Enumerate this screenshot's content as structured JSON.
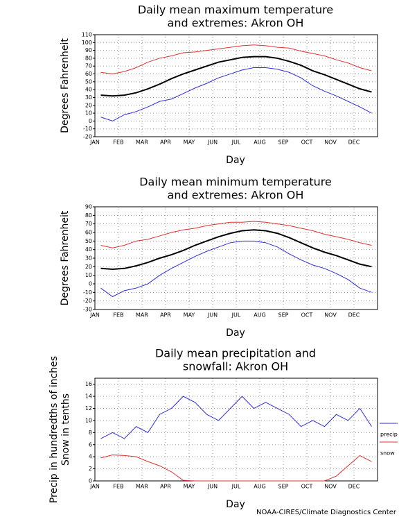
{
  "chart_data": [
    {
      "type": "line",
      "title": [
        "Daily mean maximum temperature",
        "and extremes: Akron OH"
      ],
      "ylabel": [
        "Degrees Fahrenheit"
      ],
      "xlabel": "Day",
      "categories": [
        "JAN",
        null,
        "FEB",
        null,
        "MAR",
        null,
        "APR",
        null,
        "MAY",
        null,
        "JUN",
        null,
        "JUL",
        null,
        "AUG",
        null,
        "SEP",
        null,
        "OCT",
        null,
        "NOV",
        null,
        "DEC",
        null
      ],
      "ylim": [
        -20,
        110
      ],
      "yticks": [
        -20,
        -10,
        0,
        10,
        20,
        30,
        40,
        50,
        60,
        70,
        80,
        90,
        100,
        110
      ],
      "grid": true,
      "series": [
        {
          "color": "#e03030",
          "values": [
            62,
            60,
            63,
            68,
            75,
            80,
            83,
            87,
            88,
            90,
            92,
            94,
            96,
            97,
            96,
            94,
            93,
            89,
            86,
            83,
            78,
            74,
            68,
            64
          ]
        },
        {
          "color": "#000000",
          "values": [
            33,
            32,
            33,
            36,
            41,
            47,
            54,
            60,
            65,
            70,
            75,
            78,
            81,
            82,
            82,
            80,
            76,
            71,
            64,
            59,
            53,
            47,
            41,
            37
          ]
        },
        {
          "color": "#2a2adc",
          "values": [
            5,
            0,
            8,
            12,
            18,
            25,
            28,
            35,
            42,
            48,
            55,
            60,
            65,
            68,
            68,
            66,
            62,
            55,
            45,
            38,
            32,
            25,
            18,
            10
          ]
        }
      ]
    },
    {
      "type": "line",
      "title": [
        "Daily mean minimum temperature",
        "and extremes: Akron OH"
      ],
      "ylabel": [
        "Degrees Fahrenheit"
      ],
      "xlabel": "Day",
      "categories": [
        "JAN",
        null,
        "FEB",
        null,
        "MAR",
        null,
        "APR",
        null,
        "MAY",
        null,
        "JUN",
        null,
        "JUL",
        null,
        "AUG",
        null,
        "SEP",
        null,
        "OCT",
        null,
        "NOV",
        null,
        "DEC",
        null
      ],
      "ylim": [
        -30,
        90
      ],
      "yticks": [
        -30,
        -20,
        -10,
        0,
        10,
        20,
        30,
        40,
        50,
        60,
        70,
        80,
        90
      ],
      "grid": true,
      "series": [
        {
          "color": "#e03030",
          "values": [
            45,
            42,
            45,
            50,
            52,
            56,
            60,
            63,
            65,
            68,
            70,
            72,
            72,
            73,
            72,
            70,
            68,
            65,
            62,
            58,
            55,
            52,
            48,
            45
          ]
        },
        {
          "color": "#000000",
          "values": [
            18,
            17,
            18,
            21,
            25,
            30,
            34,
            39,
            45,
            50,
            55,
            59,
            62,
            63,
            62,
            59,
            54,
            48,
            42,
            37,
            33,
            28,
            23,
            20
          ]
        },
        {
          "color": "#2a2adc",
          "values": [
            -5,
            -15,
            -8,
            -5,
            0,
            10,
            18,
            25,
            32,
            38,
            43,
            48,
            50,
            50,
            48,
            43,
            35,
            28,
            22,
            18,
            12,
            5,
            -5,
            -10
          ]
        }
      ]
    },
    {
      "type": "line",
      "title": [
        "Daily mean precipitation and",
        "snowfall: Akron OH"
      ],
      "ylabel": [
        "Precip in hundredths of inches",
        "Snow in tenths"
      ],
      "xlabel": "Day",
      "categories": [
        "JAN",
        null,
        "FEB",
        null,
        "MAR",
        null,
        "APR",
        null,
        "MAY",
        null,
        "JUN",
        null,
        "JUL",
        null,
        "AUG",
        null,
        "SEP",
        null,
        "OCT",
        null,
        "NOV",
        null,
        "DEC",
        null
      ],
      "ylim": [
        0,
        17
      ],
      "yticks": [
        0,
        2,
        4,
        6,
        8,
        10,
        12,
        14,
        16
      ],
      "grid": true,
      "series": [
        {
          "name": "precip",
          "color": "#2a2adc",
          "values": [
            7,
            8,
            7,
            9,
            8,
            11,
            12,
            14,
            13,
            11,
            10,
            12,
            14,
            12,
            13,
            12,
            11,
            9,
            10,
            9,
            11,
            10,
            12,
            9
          ]
        },
        {
          "name": "snow",
          "color": "#e03030",
          "values": [
            3.8,
            4.3,
            4.2,
            4,
            3.2,
            2.5,
            1.5,
            0.1,
            0,
            0,
            0,
            0,
            0,
            0,
            0,
            0,
            0,
            0,
            0,
            0,
            0.8,
            2.5,
            4.2,
            3.2
          ]
        }
      ]
    }
  ],
  "credit": "NOAA-CIRES/Climate Diagnostics Center"
}
